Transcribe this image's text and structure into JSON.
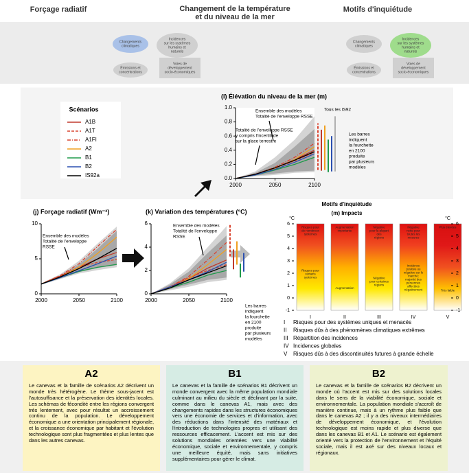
{
  "header": {
    "left": "Forçage radiatif",
    "center": [
      "Changement de la température",
      "et du niveau de la mer"
    ],
    "right": "Motifs d'inquiétude"
  },
  "diagram": {
    "nodes": [
      [
        "Changements",
        "climatiques"
      ],
      [
        "Incidences",
        "sur les systèmes",
        "humains et",
        "naturels"
      ],
      [
        "Émissions et",
        "concentrations"
      ],
      [
        "Voies de",
        "développement",
        "socio-économiques"
      ]
    ],
    "colors": [
      "#a9c1e8",
      "#d0d0d0",
      "#9fdc8c"
    ]
  },
  "legend": {
    "title": "Scénarios",
    "series": [
      {
        "name": "A1B",
        "color": "#c0392b",
        "dash": "solid"
      },
      {
        "name": "A1T",
        "color": "#d9432f",
        "dash": "dashed"
      },
      {
        "name": "A1FI",
        "color": "#d9432f",
        "dash": "dashdot"
      },
      {
        "name": "A2",
        "color": "#f0a020",
        "dash": "solid"
      },
      {
        "name": "B1",
        "color": "#1e9a4a",
        "dash": "solid"
      },
      {
        "name": "B2",
        "color": "#2a4fb0",
        "dash": "solid"
      },
      {
        "name": "IS92a",
        "color": "#000000",
        "dash": "solid"
      }
    ]
  },
  "chart_data": [
    {
      "type": "line",
      "title": "(l) Élévation du niveau de la mer (m)",
      "x": [
        2000,
        2025,
        2050,
        2075,
        2100
      ],
      "xlim": [
        2000,
        2100
      ],
      "xticks": [
        2000,
        2050,
        2100
      ],
      "ylim": [
        0,
        1
      ],
      "yticks": [
        {
          "value": 0,
          "label": "0.0"
        },
        0.2,
        0.4,
        0.6,
        0.8,
        {
          "value": 1,
          "label": "1.0"
        }
      ],
      "envelopes": [
        {
          "color": "#d4d4d4",
          "lower": [
            0,
            0.03,
            0.05,
            0.08,
            0.09
          ],
          "upper": [
            0,
            0.1,
            0.3,
            0.55,
            0.88
          ]
        },
        {
          "color": "#a8a8a8",
          "lower": [
            0,
            0.04,
            0.07,
            0.1,
            0.11
          ],
          "upper": [
            0,
            0.08,
            0.22,
            0.45,
            0.7
          ]
        }
      ],
      "series": [
        {
          "values": [
            0,
            0.06,
            0.15,
            0.27,
            0.4
          ]
        },
        {
          "values": [
            0,
            0.06,
            0.15,
            0.25,
            0.37
          ]
        },
        {
          "values": [
            0,
            0.06,
            0.16,
            0.3,
            0.5
          ]
        },
        {
          "values": [
            0,
            0.05,
            0.14,
            0.27,
            0.45
          ]
        },
        {
          "values": [
            0,
            0.05,
            0.12,
            0.2,
            0.3
          ]
        },
        {
          "values": [
            0,
            0.05,
            0.13,
            0.23,
            0.35
          ]
        },
        {
          "values": [
            0,
            0.06,
            0.15,
            0.26,
            0.38
          ]
        }
      ],
      "range_bars": [
        {
          "color": "#d9432f",
          "dash": "dashed",
          "low": 0.12,
          "high": 0.78
        },
        {
          "color": "#c0392b",
          "dash": "solid",
          "low": 0.11,
          "high": 0.69
        },
        {
          "color": "#f0a020",
          "dash": "solid",
          "low": 0.12,
          "high": 0.75
        },
        {
          "color": "#1e9a4a",
          "dash": "solid",
          "low": 0.09,
          "high": 0.55
        },
        {
          "color": "#2a4fb0",
          "dash": "solid",
          "low": 0.1,
          "high": 0.6
        },
        {
          "color": "#b0b0b0",
          "dash": "solid",
          "low": 0.1,
          "high": 0.88
        }
      ],
      "annotations": [
        [
          "Ensemble des modèles",
          "Totalité de l'enveloppe RSSE"
        ],
        [
          "Totalité de l'enveloppe RSSE",
          "y compris l'incertitude",
          "sur la glace terrestre"
        ],
        [
          "Tous les IS92"
        ],
        [
          "Les barres",
          "indiquent",
          "la fourchette",
          "en 2100",
          "produite",
          "par plusieurs",
          "modèles"
        ]
      ]
    },
    {
      "type": "line",
      "title": "(j) Forçage radiatif (Wm⁻²)",
      "x": [
        2000,
        2025,
        2050,
        2075,
        2100
      ],
      "xlim": [
        2000,
        2100
      ],
      "xticks": [
        2000,
        2050,
        2100
      ],
      "ylim": [
        0,
        10
      ],
      "yticks": [
        0,
        5,
        10
      ],
      "envelopes": [
        {
          "color": "#d4d4d4",
          "lower": [
            1.3,
            2.1,
            2.9,
            3.4,
            3.8
          ],
          "upper": [
            1.5,
            2.8,
            4.7,
            7.2,
            9.6
          ]
        },
        {
          "color": "#a8a8a8",
          "lower": [
            1.35,
            2.2,
            3.1,
            3.7,
            4.1
          ],
          "upper": [
            1.45,
            2.6,
            4.2,
            6.5,
            9.0
          ]
        }
      ],
      "series": [
        {
          "values": [
            1.4,
            2.5,
            3.8,
            5.0,
            5.9
          ]
        },
        {
          "values": [
            1.4,
            2.6,
            3.8,
            4.5,
            4.9
          ]
        },
        {
          "values": [
            1.4,
            2.6,
            4.3,
            6.8,
            9.2
          ]
        },
        {
          "values": [
            1.4,
            2.4,
            3.8,
            5.8,
            8.1
          ]
        },
        {
          "values": [
            1.4,
            2.3,
            3.2,
            3.8,
            4.2
          ]
        },
        {
          "values": [
            1.4,
            2.3,
            3.3,
            4.3,
            5.4
          ]
        },
        {
          "values": [
            1.4,
            2.4,
            3.6,
            5.0,
            6.5
          ]
        }
      ],
      "range_bars": [],
      "annotations": [
        [
          "Ensemble des modèles",
          "Totalité de l'enveloppe",
          "RSSE"
        ]
      ]
    },
    {
      "type": "line",
      "title": "(k) Variation des températures (°C)",
      "x": [
        2000,
        2025,
        2050,
        2075,
        2100
      ],
      "xlim": [
        2000,
        2100
      ],
      "xticks": [
        2000,
        2050,
        2100
      ],
      "ylim": [
        0,
        6
      ],
      "yticks": [
        0,
        2,
        4,
        6
      ],
      "envelopes": [
        {
          "color": "#d4d4d4",
          "lower": [
            0,
            0.3,
            0.6,
            1.0,
            1.2
          ],
          "upper": [
            0,
            0.9,
            2.2,
            4.0,
            5.8
          ]
        },
        {
          "color": "#a8a8a8",
          "lower": [
            0,
            0.4,
            0.8,
            1.2,
            1.4
          ],
          "upper": [
            0,
            0.8,
            1.9,
            3.5,
            5.0
          ]
        }
      ],
      "series": [
        {
          "values": [
            0,
            0.6,
            1.3,
            2.2,
            2.9
          ]
        },
        {
          "values": [
            0,
            0.6,
            1.4,
            2.0,
            2.5
          ]
        },
        {
          "values": [
            0,
            0.6,
            1.5,
            2.9,
            4.4
          ]
        },
        {
          "values": [
            0,
            0.5,
            1.3,
            2.5,
            3.8
          ]
        },
        {
          "values": [
            0,
            0.5,
            1.0,
            1.6,
            2.0
          ]
        },
        {
          "values": [
            0,
            0.6,
            1.2,
            1.9,
            2.7
          ]
        },
        {
          "values": [
            0,
            0.5,
            1.2,
            1.8,
            2.4
          ]
        }
      ],
      "range_bars": [
        {
          "color": "#d9432f",
          "dash": "dashed",
          "low": 3.2,
          "high": 5.9
        },
        {
          "color": "#c0392b",
          "dash": "solid",
          "low": 2.1,
          "high": 3.8
        },
        {
          "color": "#f0a020",
          "dash": "solid",
          "low": 2.5,
          "high": 4.5
        },
        {
          "color": "#1e9a4a",
          "dash": "solid",
          "low": 1.4,
          "high": 2.6
        },
        {
          "color": "#2a4fb0",
          "dash": "solid",
          "low": 1.9,
          "high": 3.5
        }
      ],
      "annotations": [
        [
          "Ensemble des modèles",
          "Totalité de l'enveloppe",
          "RSSE"
        ],
        [
          "Les barres",
          "indiquent",
          "la fourchette",
          "en 2100",
          "produite",
          "par plusieurs",
          "modèles"
        ]
      ]
    },
    {
      "type": "embers",
      "supertitle": "Motifs d'inquiétude",
      "title": "(m) Impacts",
      "ylabel": "°C",
      "ylim": [
        -1,
        6
      ],
      "yticks": [
        -1,
        0,
        1,
        2,
        3,
        4,
        5,
        6
      ],
      "categories": [
        "I",
        "II",
        "III",
        "IV",
        "V"
      ],
      "ramps": [
        [
          "#e01010",
          "#f05020",
          "#ffb000",
          "#ffe800",
          "#ffffff"
        ],
        [
          "#e01010",
          "#f05020",
          "#ffb000",
          "#ffe800",
          "#ffffff"
        ],
        [
          "#e01010",
          "#f05020",
          "#ffb000",
          "#ffe800",
          "#ffffff"
        ],
        [
          "#e01010",
          "#f04020",
          "#ffa000",
          "#ffe000",
          "#ffffff"
        ],
        [
          "#d81010",
          "#e01818",
          "#f05020",
          "#ffc000",
          "#ffffff"
        ]
      ],
      "top_labels": [
        [
          "Risques pour",
          "de nombreux",
          "systèmes"
        ],
        [
          "Augmentation",
          "importante"
        ],
        [
          "Négative",
          "pour la plupart",
          "des",
          "régions"
        ],
        [
          "Négative",
          "nette pour",
          "toutes les",
          "mesures"
        ],
        [
          "Plus élevées"
        ]
      ],
      "bottom_labels": [
        [
          "Risques pour",
          "certains",
          "systèmes"
        ],
        [
          "Augmentation"
        ],
        [
          "Négative",
          "pour certaines",
          "régions"
        ],
        [
          "Incidence",
          "positive ou",
          "négative sur le",
          "marché;",
          "majorité des",
          "personnes",
          "affectées",
          "négativement"
        ],
        [
          "Très faible"
        ]
      ]
    }
  ],
  "risk_list": [
    "Risques pour des systèmes uniques et menacés",
    "Risques dûs à des phénomènes climatiques extrêmes",
    "Répartition des incidences",
    "Incidences globales",
    "Risques dûs à des discontinuités futures à grande échelle"
  ],
  "scenario_boxes": [
    {
      "title": "A2",
      "color": "#fdf4c2",
      "text": "Le canevas et la famille de scénarios A2 décrivent un monde très hétérogène. Le thème sous-jacent est l'autosuffisance et la préservation des identités locales. Les schémas de fécondité entre les régions convergent très lentement, avec pour résultat un accroissement continu de la population. Le développement économique a une orientation principalement régionale, et la croissance économique par habitant et l'évolution technologique sont plus fragmentées et plus lentes que dans les autres canevas."
    },
    {
      "title": "B1",
      "color": "#d6ece4",
      "text": "Le canevas et la famille de scénarios B1 décrivent un monde convergent avec la même population mondiale culminant au milieu du siècle et déclinant par la suite, comme dans le canevas A1, mais avec des changements rapides dans les structures économiques vers une économie de services et d'information, avec des réductions dans l'intensité des matériaux et l'introduction de technologies propres et utilisant des ressources efficacement. L'accent est mis sur des solutions mondiales orientées vers une viabilité économique, sociale et environnementale, y compris une meilleure équité, mais sans initiatives supplémentaires pour gérer le climat."
    },
    {
      "title": "B2",
      "color": "#eef2cf",
      "text": "Le canevas et la famille de scénarios B2 décrivent un monde où l'accent est mis sur des solutions locales dans le sens de la viabilité économique, sociale et environnementale. La population mondiale s'accroît de manière continue, mais à un rythme plus faible que dans le canevas A2 ; il y a des niveaux intermédiaires de développement économique, et l'évolution technologique est moins rapide et plus diverse que dans les canevas B1 et A1. Le scénario est également orienté vers la protection de l'environnement et l'équité sociale, mais il est axé sur des niveaux locaux et régionaux."
    }
  ]
}
